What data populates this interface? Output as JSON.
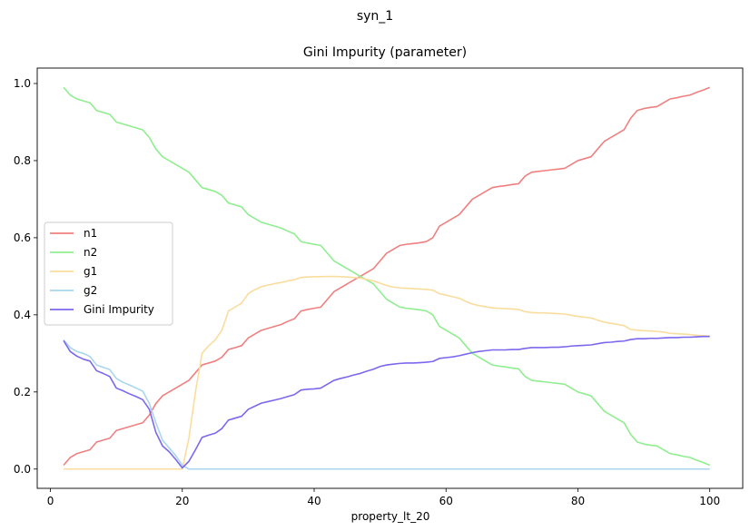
{
  "figure": {
    "suptitle": "syn_1"
  },
  "chart_data": {
    "type": "line",
    "title": "Gini Impurity (parameter)",
    "xlabel": "property_lt_20",
    "ylabel": "",
    "xlim": [
      -2,
      105
    ],
    "ylim": [
      -0.05,
      1.04
    ],
    "xticks": [
      0,
      20,
      40,
      60,
      80,
      100
    ],
    "yticks": [
      0.0,
      0.2,
      0.4,
      0.6,
      0.8,
      1.0
    ],
    "xtick_labels": [
      "0",
      "20",
      "40",
      "60",
      "80",
      "100"
    ],
    "ytick_labels": [
      "0.0",
      "0.2",
      "0.4",
      "0.6",
      "0.8",
      "1.0"
    ],
    "grid": false,
    "legend_position": "center-left",
    "x": [
      2,
      3,
      4,
      5,
      6,
      7,
      8,
      9,
      10,
      11,
      12,
      13,
      14,
      15,
      16,
      17,
      18,
      19,
      20,
      21,
      22,
      23,
      24,
      25,
      26,
      27,
      28,
      29,
      30,
      31,
      32,
      33,
      34,
      35,
      36,
      37,
      38,
      39,
      40,
      41,
      42,
      43,
      44,
      45,
      46,
      47,
      48,
      49,
      50,
      51,
      52,
      53,
      54,
      55,
      56,
      57,
      58,
      59,
      60,
      61,
      62,
      63,
      64,
      65,
      66,
      67,
      68,
      69,
      70,
      71,
      72,
      73,
      74,
      75,
      76,
      77,
      78,
      79,
      80,
      81,
      82,
      83,
      84,
      85,
      86,
      87,
      88,
      89,
      90,
      91,
      92,
      93,
      94,
      95,
      96,
      97,
      98,
      99,
      100
    ],
    "series": [
      {
        "name": "n1",
        "color": "#f08080",
        "values": [
          0.01,
          0.03,
          0.04,
          0.045,
          0.05,
          0.07,
          0.075,
          0.08,
          0.1,
          0.105,
          0.11,
          0.115,
          0.12,
          0.14,
          0.17,
          0.19,
          0.2,
          0.21,
          0.22,
          0.23,
          0.25,
          0.27,
          0.275,
          0.28,
          0.29,
          0.31,
          0.315,
          0.32,
          0.34,
          0.35,
          0.36,
          0.365,
          0.37,
          0.375,
          0.383,
          0.39,
          0.41,
          0.414,
          0.417,
          0.42,
          0.44,
          0.46,
          0.47,
          0.48,
          0.49,
          0.5,
          0.51,
          0.52,
          0.54,
          0.56,
          0.57,
          0.58,
          0.583,
          0.585,
          0.587,
          0.59,
          0.6,
          0.63,
          0.64,
          0.65,
          0.66,
          0.68,
          0.7,
          0.71,
          0.72,
          0.73,
          0.733,
          0.735,
          0.738,
          0.74,
          0.76,
          0.77,
          0.772,
          0.774,
          0.776,
          0.778,
          0.78,
          0.79,
          0.8,
          0.805,
          0.81,
          0.83,
          0.85,
          0.86,
          0.87,
          0.88,
          0.91,
          0.93,
          0.935,
          0.938,
          0.94,
          0.95,
          0.96,
          0.963,
          0.967,
          0.97,
          0.977,
          0.983,
          0.99
        ]
      },
      {
        "name": "n2",
        "color": "#90ee90",
        "values": [
          0.99,
          0.97,
          0.96,
          0.955,
          0.95,
          0.93,
          0.925,
          0.92,
          0.9,
          0.895,
          0.89,
          0.885,
          0.88,
          0.86,
          0.83,
          0.81,
          0.8,
          0.79,
          0.78,
          0.77,
          0.75,
          0.73,
          0.725,
          0.72,
          0.71,
          0.69,
          0.685,
          0.68,
          0.66,
          0.65,
          0.64,
          0.635,
          0.63,
          0.625,
          0.617,
          0.61,
          0.59,
          0.586,
          0.583,
          0.58,
          0.56,
          0.54,
          0.53,
          0.52,
          0.51,
          0.5,
          0.49,
          0.48,
          0.46,
          0.44,
          0.43,
          0.42,
          0.417,
          0.415,
          0.413,
          0.41,
          0.4,
          0.37,
          0.36,
          0.35,
          0.34,
          0.32,
          0.3,
          0.29,
          0.28,
          0.27,
          0.267,
          0.265,
          0.262,
          0.26,
          0.24,
          0.23,
          0.228,
          0.226,
          0.224,
          0.222,
          0.22,
          0.21,
          0.2,
          0.195,
          0.19,
          0.17,
          0.15,
          0.14,
          0.13,
          0.12,
          0.09,
          0.07,
          0.065,
          0.062,
          0.06,
          0.05,
          0.04,
          0.037,
          0.033,
          0.03,
          0.023,
          0.017,
          0.01
        ]
      },
      {
        "name": "g1",
        "color": "#fadd9e",
        "values": [
          0,
          0,
          0,
          0,
          0,
          0,
          0,
          0,
          0,
          0,
          0,
          0,
          0,
          0,
          0,
          0,
          0,
          0,
          0,
          0.08,
          0.2,
          0.3,
          0.32,
          0.335,
          0.36,
          0.41,
          0.42,
          0.43,
          0.455,
          0.465,
          0.473,
          0.477,
          0.481,
          0.484,
          0.488,
          0.491,
          0.497,
          0.498,
          0.499,
          0.499,
          0.4995,
          0.4995,
          0.499,
          0.498,
          0.497,
          0.495,
          0.492,
          0.488,
          0.482,
          0.476,
          0.472,
          0.47,
          0.469,
          0.468,
          0.467,
          0.466,
          0.464,
          0.455,
          0.451,
          0.447,
          0.443,
          0.435,
          0.428,
          0.424,
          0.421,
          0.418,
          0.417,
          0.416,
          0.415,
          0.414,
          0.408,
          0.406,
          0.405,
          0.405,
          0.404,
          0.403,
          0.402,
          0.399,
          0.396,
          0.394,
          0.392,
          0.386,
          0.381,
          0.378,
          0.375,
          0.372,
          0.362,
          0.36,
          0.359,
          0.358,
          0.357,
          0.355,
          0.352,
          0.351,
          0.35,
          0.349,
          0.347,
          0.346,
          0.345
        ]
      },
      {
        "name": "g2",
        "color": "#a9d6ee",
        "values": [
          0.335,
          0.315,
          0.305,
          0.3,
          0.292,
          0.27,
          0.264,
          0.258,
          0.235,
          0.225,
          0.218,
          0.21,
          0.202,
          0.17,
          0.12,
          0.075,
          0.055,
          0.035,
          0.01,
          0,
          0,
          0,
          0,
          0,
          0,
          0,
          0,
          0,
          0,
          0,
          0,
          0,
          0,
          0,
          0,
          0,
          0,
          0,
          0,
          0,
          0,
          0,
          0,
          0,
          0,
          0,
          0,
          0,
          0,
          0,
          0,
          0,
          0,
          0,
          0,
          0,
          0,
          0,
          0,
          0,
          0,
          0,
          0,
          0,
          0,
          0,
          0,
          0,
          0,
          0,
          0,
          0,
          0,
          0,
          0,
          0,
          0,
          0,
          0,
          0,
          0,
          0,
          0,
          0,
          0,
          0,
          0,
          0,
          0,
          0,
          0,
          0,
          0,
          0,
          0,
          0,
          0,
          0,
          0
        ]
      },
      {
        "name": "Gini Impurity",
        "color": "#7b68ee",
        "values": [
          0.333,
          0.305,
          0.293,
          0.285,
          0.28,
          0.255,
          0.248,
          0.24,
          0.21,
          0.203,
          0.195,
          0.188,
          0.18,
          0.155,
          0.095,
          0.06,
          0.045,
          0.025,
          0.003,
          0.02,
          0.05,
          0.082,
          0.088,
          0.093,
          0.105,
          0.127,
          0.132,
          0.137,
          0.155,
          0.163,
          0.171,
          0.175,
          0.179,
          0.183,
          0.188,
          0.193,
          0.205,
          0.207,
          0.208,
          0.21,
          0.22,
          0.23,
          0.235,
          0.239,
          0.244,
          0.248,
          0.254,
          0.259,
          0.266,
          0.27,
          0.272,
          0.274,
          0.275,
          0.275,
          0.276,
          0.277,
          0.279,
          0.287,
          0.289,
          0.291,
          0.294,
          0.298,
          0.302,
          0.305,
          0.307,
          0.309,
          0.309,
          0.309,
          0.31,
          0.31,
          0.313,
          0.315,
          0.315,
          0.315,
          0.316,
          0.316,
          0.317,
          0.319,
          0.32,
          0.321,
          0.322,
          0.325,
          0.328,
          0.329,
          0.331,
          0.332,
          0.336,
          0.338,
          0.338,
          0.339,
          0.339,
          0.34,
          0.341,
          0.341,
          0.342,
          0.342,
          0.343,
          0.344,
          0.344
        ]
      }
    ]
  }
}
